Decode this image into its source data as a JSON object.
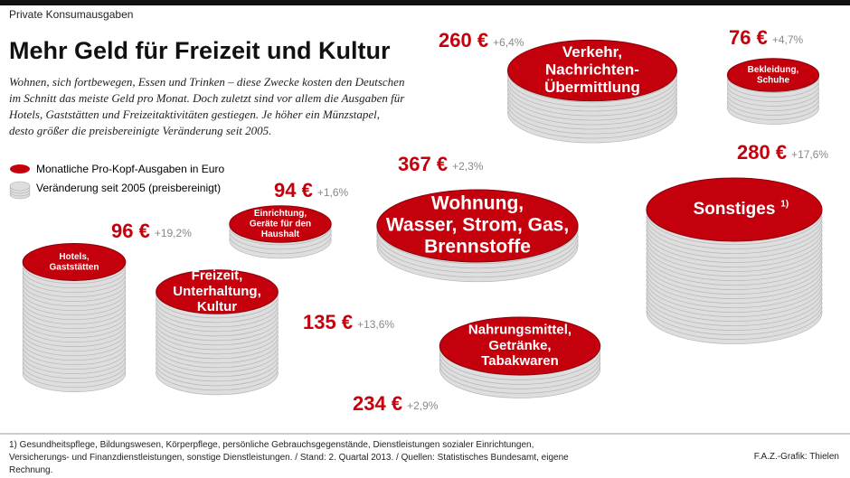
{
  "chart_data": {
    "type": "coin-stack",
    "kicker": "Private Konsumausgaben",
    "title": "Mehr Geld für Freizeit und Kultur",
    "subtitle": "Wohnen, sich fortbewegen, Essen und Trinken – diese Zwecke kosten den Deutschen im Schnitt das meiste Geld pro Monat. Doch zuletzt sind vor allem die Ausgaben für Hotels, Gaststätten und Freizeitaktivitäten gestiegen. Je höher ein Münzstapel, desto größer die preisbereinigte Veränderung seit 2005.",
    "categories": [
      [
        "Verkehr,",
        "Nachrichten-",
        "Übermittlung"
      ],
      [
        "Bekleidung,",
        "Schuhe"
      ],
      [
        "Wohnung,",
        "Wasser, Strom, Gas,",
        "Brennstoffe"
      ],
      [
        "Sonstiges"
      ],
      [
        "Einrichtung,",
        "Geräte für den",
        "Haushalt"
      ],
      [
        "Hotels,",
        "Gaststätten"
      ],
      [
        "Freizeit,",
        "Unterhaltung,",
        "Kultur"
      ],
      [
        "Nahrungsmittel,",
        "Getränke,",
        "Tabakwaren"
      ]
    ],
    "note_marker": "1)",
    "series": [
      {
        "name": "Monatliche Pro-Kopf-Ausgaben in Euro",
        "color": "#c4000c",
        "values": [
          260,
          76,
          367,
          280,
          94,
          96,
          135,
          234
        ],
        "value_labels": [
          "260 €",
          "76 €",
          "367 €",
          "280 €",
          "94 €",
          "96 €",
          "135 €",
          "234 €"
        ]
      },
      {
        "name": "Veränderung seit 2005 (preisbereinigt)",
        "color": "#dedede",
        "values": [
          6.4,
          4.7,
          2.3,
          17.6,
          1.6,
          19.2,
          13.6,
          2.9
        ],
        "value_labels": [
          "+6,4%",
          "+4,7%",
          "+2,3%",
          "+17,6%",
          "+1,6%",
          "+19,2%",
          "+13,6%",
          "+2,9%"
        ]
      }
    ],
    "footnote": "1) Gesundheitspflege, Bildungswesen, Körperpflege, persönliche Gebrauchsgegenstände, Dienstleistungen sozialer Einrichtungen, Versicherungs- und Finanzdienstleistungen, sonstige Dienstleistungen. / Stand: 2. Quartal 2013. / Quellen: Statistisches Bundesamt, eigene Rechnung.",
    "source": "F.A.Z.-Grafik: Thielen"
  }
}
